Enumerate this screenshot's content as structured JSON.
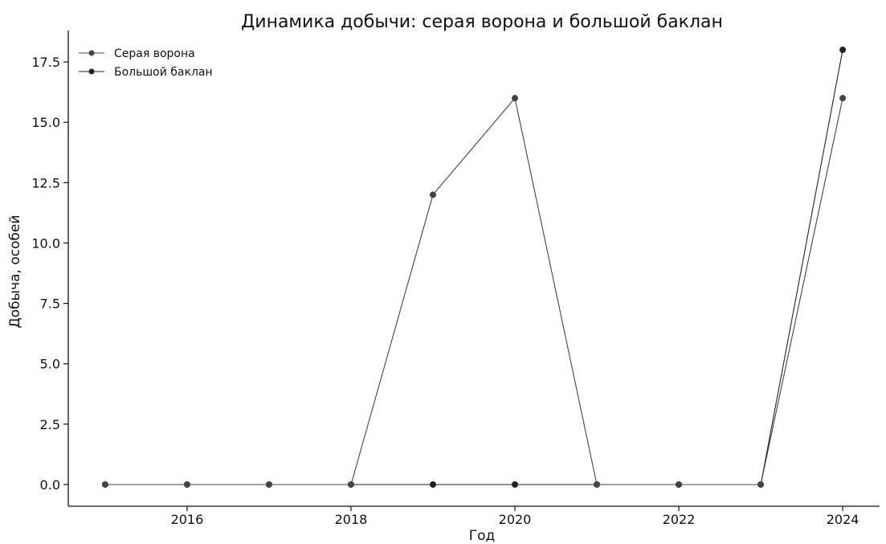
{
  "chart_data": {
    "type": "line",
    "title": "Динамика добычи: серая ворона и большой баклан",
    "xlabel": "Год",
    "ylabel": "Добыча, особей",
    "x": [
      2015,
      2016,
      2017,
      2018,
      2019,
      2020,
      2021,
      2022,
      2023,
      2024
    ],
    "xlim": [
      2014.55,
      2024.45
    ],
    "ylim": [
      -0.9,
      18.8
    ],
    "xticks": [
      2016,
      2018,
      2020,
      2022,
      2024
    ],
    "yticks": [
      0.0,
      2.5,
      5.0,
      7.5,
      10.0,
      12.5,
      15.0,
      17.5
    ],
    "xtick_labels": [
      "2016",
      "2018",
      "2020",
      "2022",
      "2024"
    ],
    "ytick_labels": [
      "0.0",
      "2.5",
      "5.0",
      "7.5",
      "10.0",
      "12.5",
      "15.0",
      "17.5"
    ],
    "series": [
      {
        "name": "Серая ворона",
        "values": [
          0,
          0,
          0,
          0,
          12,
          16,
          0,
          0,
          0,
          16
        ],
        "color": "#444444"
      },
      {
        "name": "Большой баклан",
        "values": [
          0,
          0,
          0,
          0,
          0,
          0,
          0,
          0,
          0,
          18
        ],
        "color": "#222222"
      }
    ],
    "grid": false,
    "legend_position": "top-left",
    "spines": "left-bottom"
  }
}
